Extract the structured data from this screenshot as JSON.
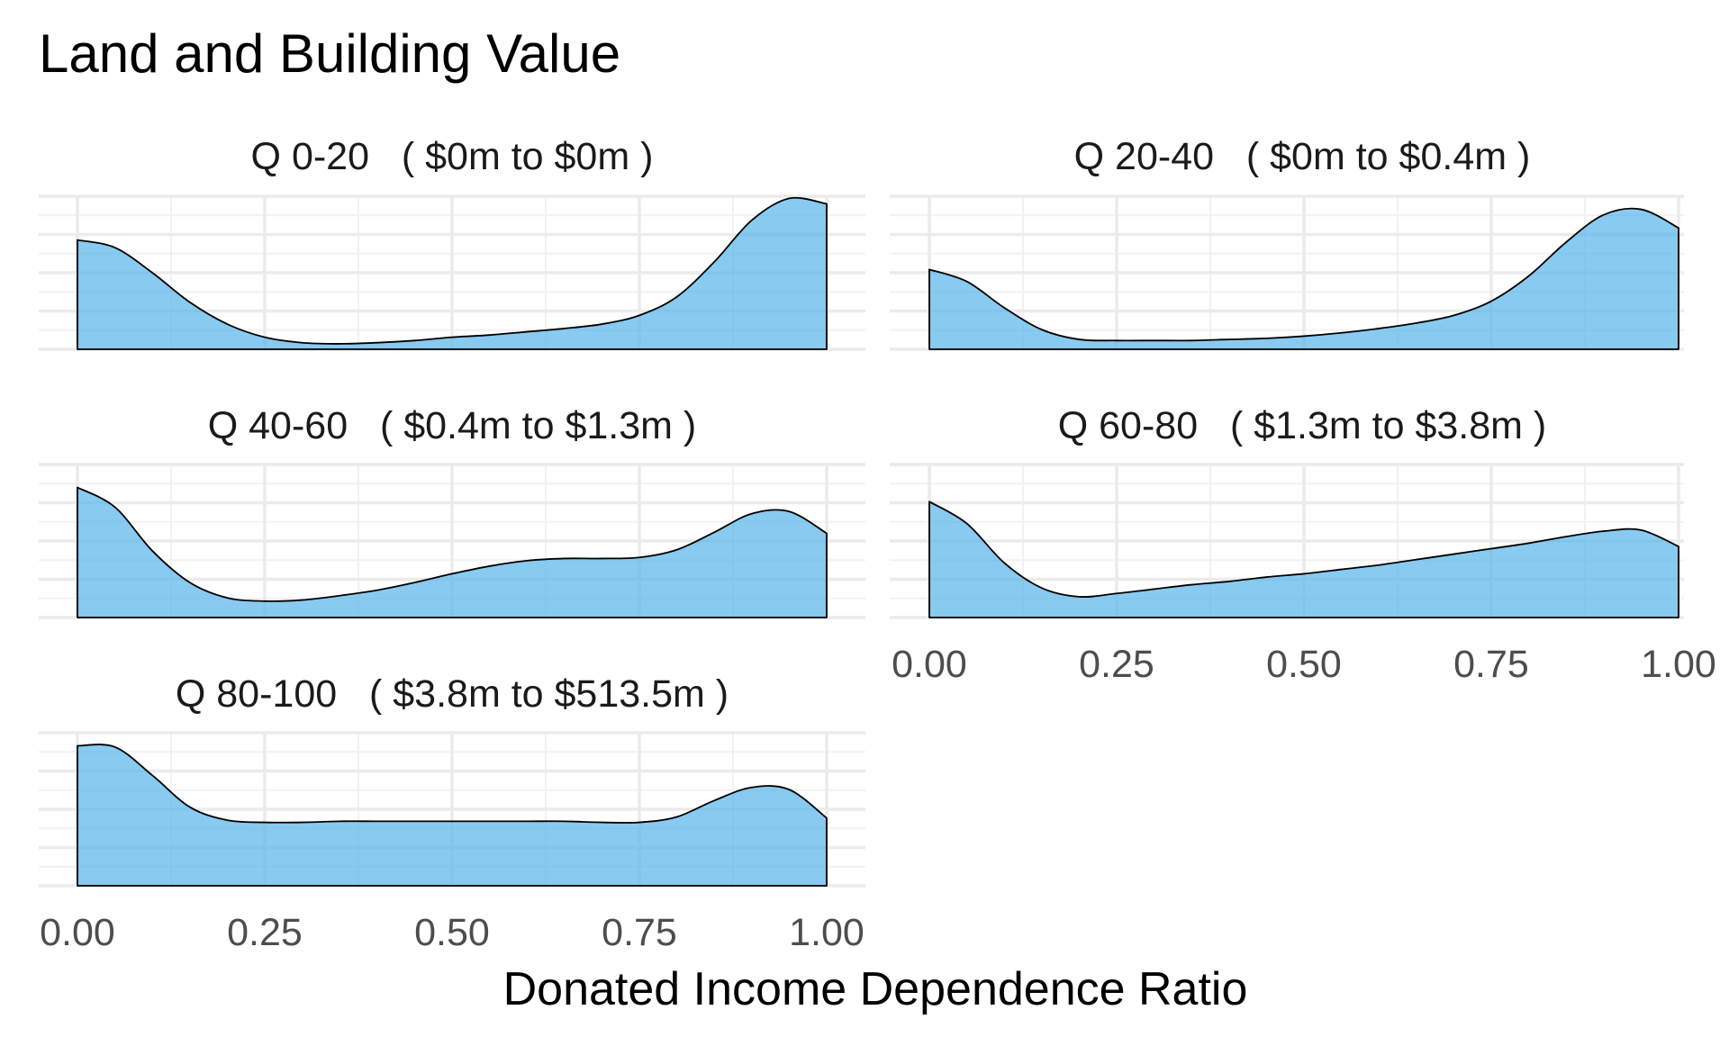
{
  "title": "Land and Building Value",
  "xlabel": "Donated Income Dependence Ratio",
  "fill_color": "#56B4E9",
  "fill_opacity": 0.7,
  "chart_data": {
    "type": "area",
    "title": "Land and Building Value",
    "xlabel": "Donated Income Dependence Ratio",
    "ylabel": "",
    "xlim": [
      0,
      1
    ],
    "x_ticks": [
      "0.00",
      "0.25",
      "0.50",
      "0.75",
      "1.00"
    ],
    "y_tick_labels_shown": false,
    "grid": true,
    "layout": "facets, 2 columns",
    "x": [
      0.0,
      0.05,
      0.1,
      0.15,
      0.2,
      0.25,
      0.3,
      0.35,
      0.4,
      0.45,
      0.5,
      0.55,
      0.6,
      0.65,
      0.7,
      0.75,
      0.8,
      0.85,
      0.9,
      0.95,
      1.0
    ],
    "facets": [
      {
        "title": "Q 0-20   ( $0m to $0m )",
        "density": [
          1.0,
          0.93,
          0.7,
          0.43,
          0.23,
          0.11,
          0.06,
          0.05,
          0.06,
          0.08,
          0.11,
          0.13,
          0.16,
          0.19,
          0.23,
          0.31,
          0.48,
          0.8,
          1.18,
          1.38,
          1.33
        ]
      },
      {
        "title": "Q 20-40   ( $0m to $0.4m )",
        "density": [
          0.73,
          0.62,
          0.38,
          0.18,
          0.09,
          0.08,
          0.08,
          0.08,
          0.09,
          0.1,
          0.12,
          0.15,
          0.19,
          0.24,
          0.31,
          0.44,
          0.67,
          0.98,
          1.23,
          1.28,
          1.11
        ]
      },
      {
        "title": "Q 40-60   ( $0.4m to $1.3m )",
        "density": [
          1.19,
          1.01,
          0.61,
          0.32,
          0.18,
          0.15,
          0.16,
          0.2,
          0.25,
          0.32,
          0.4,
          0.47,
          0.52,
          0.54,
          0.54,
          0.55,
          0.62,
          0.78,
          0.95,
          0.97,
          0.77
        ]
      },
      {
        "title": "Q 60-80   ( $1.3m to $3.8m )",
        "density": [
          1.06,
          0.86,
          0.5,
          0.27,
          0.19,
          0.22,
          0.26,
          0.3,
          0.33,
          0.37,
          0.4,
          0.44,
          0.48,
          0.53,
          0.58,
          0.63,
          0.68,
          0.74,
          0.79,
          0.8,
          0.65
        ]
      },
      {
        "title": "Q 80-100   ( $3.8m to $513.5m )",
        "density": [
          1.28,
          1.27,
          1.01,
          0.72,
          0.6,
          0.58,
          0.58,
          0.59,
          0.59,
          0.59,
          0.59,
          0.59,
          0.59,
          0.59,
          0.58,
          0.58,
          0.63,
          0.78,
          0.9,
          0.88,
          0.62
        ]
      }
    ]
  }
}
